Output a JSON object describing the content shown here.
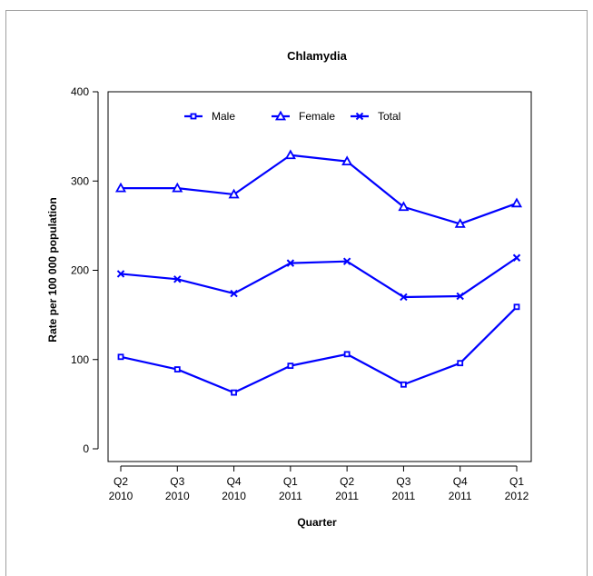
{
  "chart_data": {
    "type": "line",
    "title": "Chlamydia",
    "xlabel": "Quarter",
    "ylabel": "Rate per 100 000 population",
    "categories": [
      [
        "Q2",
        "2010"
      ],
      [
        "Q3",
        "2010"
      ],
      [
        "Q4",
        "2010"
      ],
      [
        "Q1",
        "2011"
      ],
      [
        "Q2",
        "2011"
      ],
      [
        "Q3",
        "2011"
      ],
      [
        "Q4",
        "2011"
      ],
      [
        "Q1",
        "2012"
      ]
    ],
    "ylim": [
      0,
      400
    ],
    "yticks": [
      0,
      100,
      200,
      300,
      400
    ],
    "legend_position": "top",
    "line_color": "#0000ff",
    "series": [
      {
        "name": "Male",
        "marker": "square",
        "values": [
          103,
          89,
          63,
          93,
          106,
          72,
          96,
          159
        ]
      },
      {
        "name": "Female",
        "marker": "triangle",
        "values": [
          292,
          292,
          285,
          329,
          322,
          271,
          252,
          275
        ]
      },
      {
        "name": "Total",
        "marker": "x",
        "values": [
          196,
          190,
          174,
          208,
          210,
          170,
          171,
          214
        ]
      }
    ]
  }
}
